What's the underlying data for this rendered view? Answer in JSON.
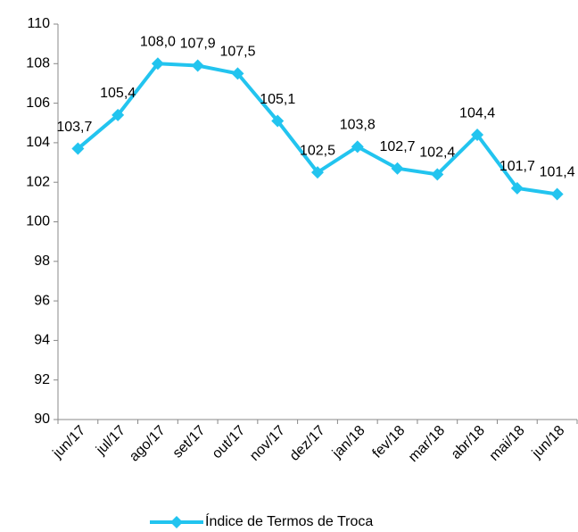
{
  "chart_data": {
    "type": "line",
    "categories": [
      "jun/17",
      "jul/17",
      "ago/17",
      "set/17",
      "out/17",
      "nov/17",
      "dez/17",
      "jan/18",
      "fev/18",
      "mar/18",
      "abr/18",
      "mai/18",
      "jun/18"
    ],
    "series": [
      {
        "name": "Índice de Termos de Troca",
        "color": "#22c4ef",
        "values": [
          103.7,
          105.4,
          108.0,
          107.9,
          107.5,
          105.1,
          102.5,
          103.8,
          102.7,
          102.4,
          104.4,
          101.7,
          101.4
        ],
        "value_labels": [
          "103,7",
          "105,4",
          "108,0",
          "107,9",
          "107,5",
          "105,1",
          "102,5",
          "103,8",
          "102,7",
          "102,4",
          "104,4",
          "101,7",
          "101,4"
        ]
      }
    ],
    "ylim": [
      90,
      110
    ],
    "yticks": [
      90,
      92,
      94,
      96,
      98,
      100,
      102,
      104,
      106,
      108,
      110
    ],
    "legend": "bottom"
  }
}
